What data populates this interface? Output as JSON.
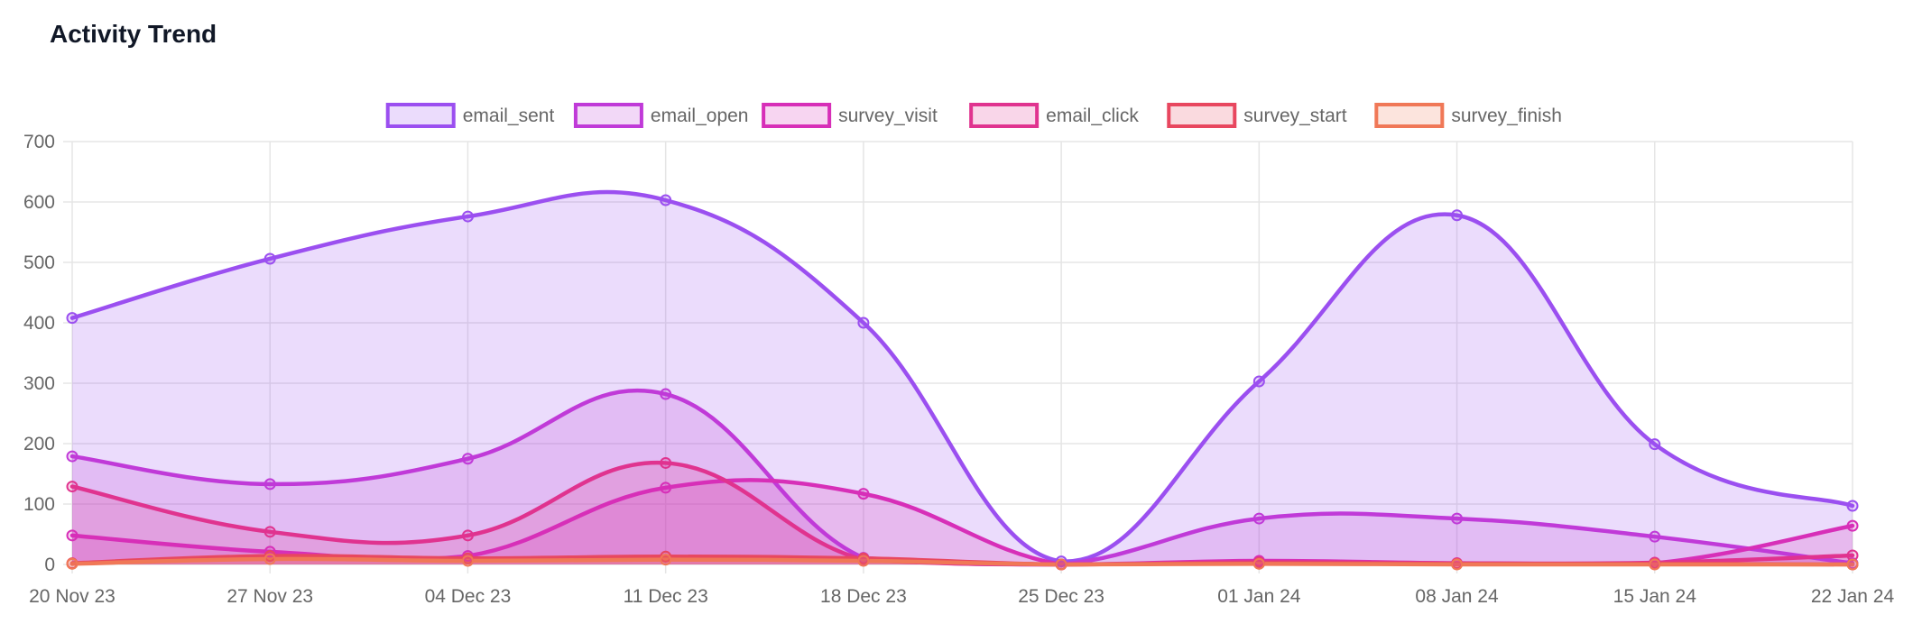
{
  "page": {
    "title": "Activity Trend"
  },
  "chart_data": {
    "type": "area",
    "title": "Activity Trend",
    "xlabel": "",
    "ylabel": "",
    "ylim": [
      0,
      700
    ],
    "yticks": [
      0,
      100,
      200,
      300,
      400,
      500,
      600,
      700
    ],
    "grid": true,
    "legend_position": "top-center",
    "categories": [
      "20 Nov 23",
      "27 Nov 23",
      "04 Dec 23",
      "11 Dec 23",
      "18 Dec 23",
      "25 Dec 23",
      "01 Jan 24",
      "08 Jan 24",
      "15 Jan 24",
      "22 Jan 24"
    ],
    "series": [
      {
        "name": "email_sent",
        "color": "#9b4ff0",
        "fill": "rgba(155,79,240,0.20)",
        "values": [
          408,
          506,
          576,
          603,
          400,
          5,
          303,
          578,
          199,
          97
        ]
      },
      {
        "name": "email_open",
        "color": "#c03ad8",
        "fill": "rgba(192,58,216,0.20)",
        "values": [
          179,
          133,
          175,
          282,
          11,
          0,
          76,
          76,
          46,
          2
        ]
      },
      {
        "name": "survey_visit",
        "color": "#d72fb8",
        "fill": "rgba(215,47,184,0.20)",
        "values": [
          48,
          21,
          14,
          127,
          117,
          0,
          6,
          2,
          2,
          64
        ]
      },
      {
        "name": "email_click",
        "color": "#e0338f",
        "fill": "rgba(224,51,143,0.20)",
        "values": [
          129,
          54,
          48,
          168,
          8,
          0,
          4,
          2,
          3,
          15
        ]
      },
      {
        "name": "survey_start",
        "color": "#e8475f",
        "fill": "rgba(232,71,95,0.20)",
        "values": [
          2,
          14,
          10,
          13,
          10,
          0,
          2,
          1,
          1,
          0
        ]
      },
      {
        "name": "survey_finish",
        "color": "#f07857",
        "fill": "rgba(240,120,87,0.20)",
        "values": [
          1,
          9,
          6,
          8,
          6,
          0,
          1,
          0,
          0,
          0
        ]
      }
    ]
  }
}
